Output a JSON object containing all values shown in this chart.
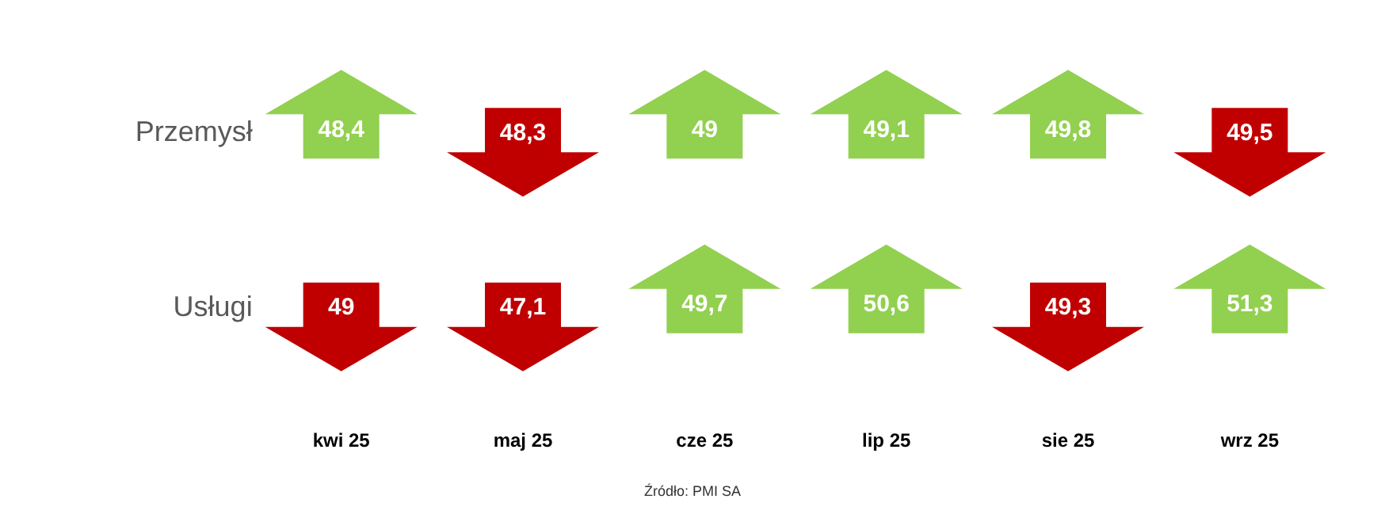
{
  "chart_data": {
    "type": "other",
    "categories": [
      "kwi 25",
      "maj 25",
      "cze 25",
      "lip 25",
      "sie 25",
      "wrz 25"
    ],
    "series": [
      {
        "name": "Przemysł",
        "values": [
          48.4,
          48.3,
          49,
          49.1,
          49.8,
          49.5
        ],
        "value_labels": [
          "48,4",
          "48,3",
          "49",
          "49,1",
          "49,8",
          "49,5"
        ],
        "colors": [
          "#92d050",
          "#c00000",
          "#92d050",
          "#92d050",
          "#92d050",
          "#c00000"
        ]
      },
      {
        "name": "Usługi",
        "values": [
          49,
          47.1,
          49.7,
          50.6,
          49.3,
          51.3
        ],
        "value_labels": [
          "49",
          "47,1",
          "49,7",
          "50,6",
          "49,3",
          "51,3"
        ],
        "colors": [
          "#c00000",
          "#c00000",
          "#92d050",
          "#92d050",
          "#c00000",
          "#92d050"
        ]
      }
    ],
    "data_labels": true,
    "annotations": [
      "Źródło: PMI SA"
    ]
  }
}
